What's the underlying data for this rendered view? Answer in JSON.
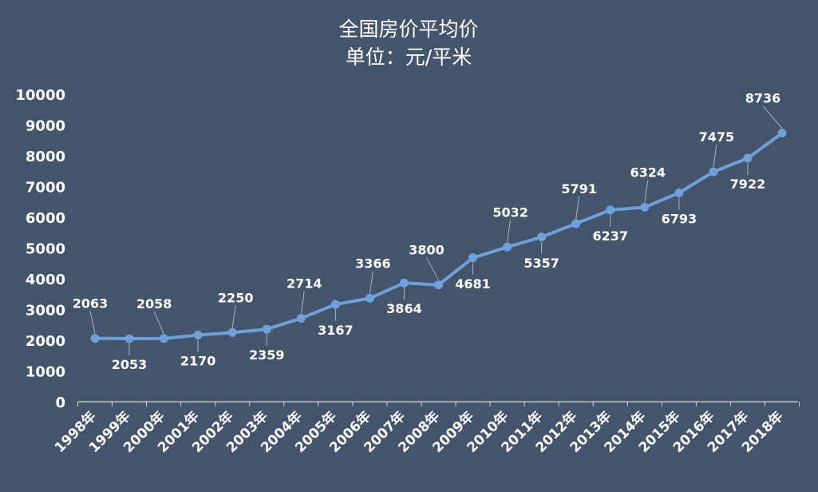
{
  "chart_data": {
    "type": "line",
    "title": "全国房价平均价",
    "subtitle": "单位：元/平米",
    "categories": [
      "1998年",
      "1999年",
      "2000年",
      "2001年",
      "2002年",
      "2003年",
      "2004年",
      "2005年",
      "2006年",
      "2007年",
      "2008年",
      "2009年",
      "2010年",
      "2011年",
      "2012年",
      "2013年",
      "2014年",
      "2015年",
      "2016年",
      "2017年",
      "2018年"
    ],
    "y_tick_labels": [
      "0",
      "1000",
      "2000",
      "3000",
      "4000",
      "5000",
      "6000",
      "7000",
      "8000",
      "9000",
      "10000"
    ],
    "series": [
      {
        "values": [
          2063,
          2053,
          2058,
          2170,
          2250,
          2359,
          2714,
          3167,
          3366,
          3864,
          3800,
          4681,
          5032,
          5357,
          5791,
          6237,
          6324,
          6793,
          7475,
          7922,
          8736
        ]
      }
    ],
    "ylim": [
      0,
      10000
    ],
    "grid": false,
    "legend": "none",
    "line_color": "#6fa0dc",
    "background_color": "#44546a",
    "text_color": "#ffffff"
  }
}
